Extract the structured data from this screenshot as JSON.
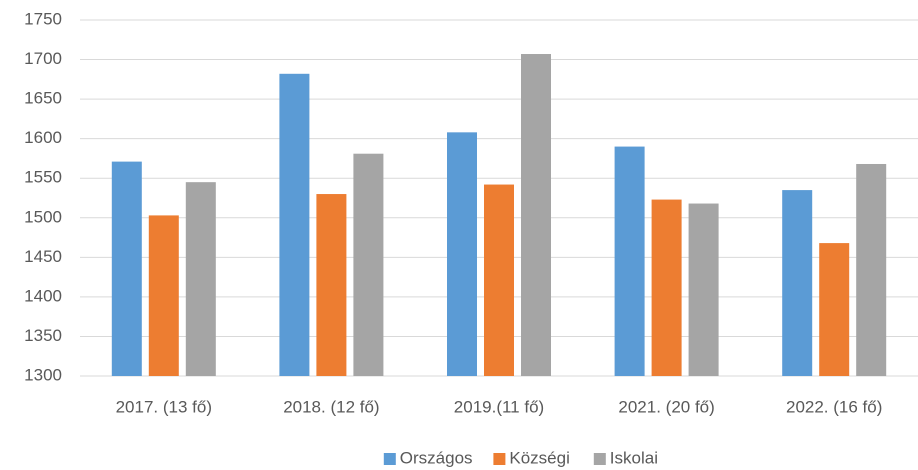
{
  "chart_data": {
    "type": "bar",
    "categories": [
      "2017. (13 fő)",
      "2018. (12 fő)",
      "2019.(11 fő)",
      "2021. (20 fő)",
      "2022. (16 fő)"
    ],
    "series": [
      {
        "name": "Országos",
        "color": "#5b9bd5",
        "values": [
          1571,
          1682,
          1608,
          1590,
          1535
        ]
      },
      {
        "name": "Községi",
        "color": "#ed7d31",
        "values": [
          1503,
          1530,
          1542,
          1523,
          1468
        ]
      },
      {
        "name": "Iskolai",
        "color": "#a5a5a5",
        "values": [
          1545,
          1581,
          1707,
          1518,
          1568
        ]
      }
    ],
    "ylim": [
      1300,
      1750
    ],
    "yticks": [
      1300,
      1350,
      1400,
      1450,
      1500,
      1550,
      1600,
      1650,
      1700,
      1750
    ],
    "grid": true,
    "legend": "bottom"
  }
}
